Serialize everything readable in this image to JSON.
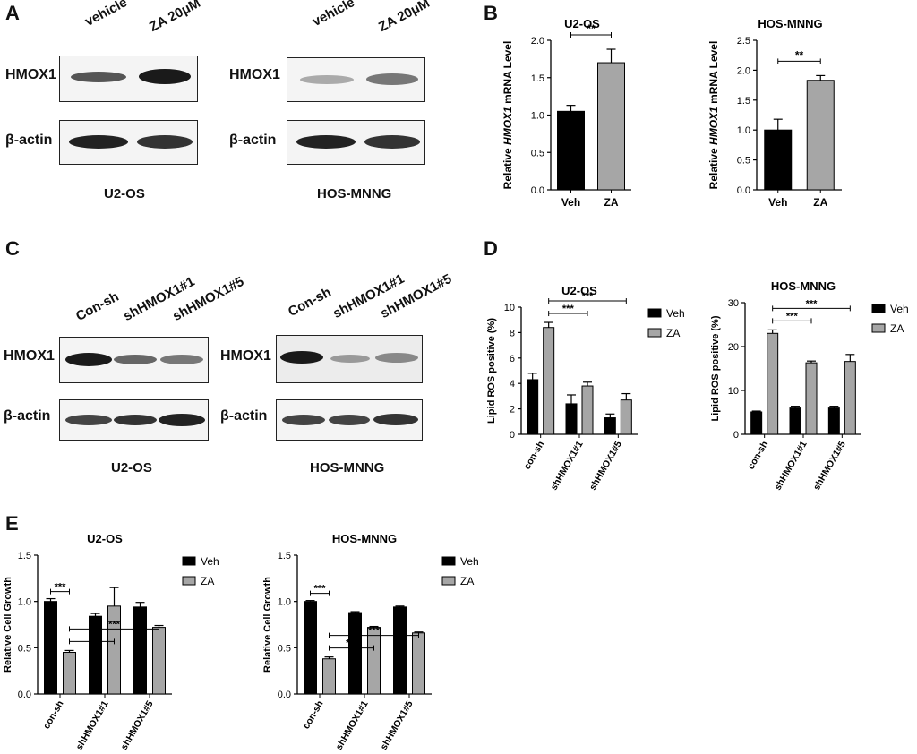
{
  "panels": {
    "A": "A",
    "B": "B",
    "C": "C",
    "D": "D",
    "E": "E"
  },
  "panel_A": {
    "lanes": [
      "vehicle",
      "ZA 20μM"
    ],
    "rows": [
      "HMOX1",
      "β-actin"
    ],
    "cells": [
      "U2-OS",
      "HOS-MNNG"
    ]
  },
  "panel_C": {
    "lanes": [
      "Con-sh",
      "shHMOX1#1",
      "shHMOX1#5"
    ],
    "rows": [
      "HMOX1",
      "β-actin"
    ],
    "cells": [
      "U2-OS",
      "HOS-MNNG"
    ]
  },
  "colors": {
    "veh": "#000000",
    "za": "#a6a6a6"
  },
  "chart_data": [
    {
      "id": "B1",
      "type": "bar",
      "title": "U2-OS",
      "ylabel": "Relative HMOX1 mRNA Level",
      "categories": [
        "Veh",
        "ZA"
      ],
      "values": [
        1.05,
        1.7
      ],
      "errors": [
        0.08,
        0.18
      ],
      "ylim": [
        0,
        2.0
      ],
      "yticks": [
        "0.0",
        "0.5",
        "1.0",
        "1.5",
        "2.0"
      ],
      "annotations": [
        {
          "text": "**",
          "from": "Veh",
          "to": "ZA"
        }
      ]
    },
    {
      "id": "B2",
      "type": "bar",
      "title": "HOS-MNNG",
      "ylabel": "Relative HMOX1 mRNA Level",
      "categories": [
        "Veh",
        "ZA"
      ],
      "values": [
        1.0,
        1.83
      ],
      "errors": [
        0.18,
        0.08
      ],
      "ylim": [
        0,
        2.5
      ],
      "yticks": [
        "0.0",
        "0.5",
        "1.0",
        "1.5",
        "2.0",
        "2.5"
      ],
      "annotations": [
        {
          "text": "**",
          "from": "Veh",
          "to": "ZA"
        }
      ]
    },
    {
      "id": "D1",
      "type": "bar",
      "title": "U2-OS",
      "ylabel": "Lipid ROS positive (%)",
      "categories": [
        "con-sh",
        "shHMOX1#1",
        "shHMOX1#5"
      ],
      "series": [
        {
          "name": "Veh",
          "values": [
            4.3,
            2.4,
            1.3
          ],
          "errors": [
            0.5,
            0.7,
            0.3
          ]
        },
        {
          "name": "ZA",
          "values": [
            8.4,
            3.8,
            2.7
          ],
          "errors": [
            0.4,
            0.3,
            0.5
          ]
        }
      ],
      "ylim": [
        0,
        10
      ],
      "yticks": [
        "0",
        "2",
        "4",
        "6",
        "8",
        "10"
      ],
      "annotations": [
        {
          "text": "***",
          "level": 1
        },
        {
          "text": "***",
          "level": 2
        }
      ]
    },
    {
      "id": "D2",
      "type": "bar",
      "title": "HOS-MNNG",
      "ylabel": "Lipid ROS positive (%)",
      "categories": [
        "con-sh",
        "shHMOX1#1",
        "shHMOX1#5"
      ],
      "series": [
        {
          "name": "Veh",
          "values": [
            5.1,
            6.0,
            6.0
          ],
          "errors": [
            0.2,
            0.4,
            0.4
          ]
        },
        {
          "name": "ZA",
          "values": [
            23.0,
            16.3,
            16.6
          ],
          "errors": [
            0.8,
            0.4,
            1.6
          ]
        }
      ],
      "ylim": [
        0,
        30
      ],
      "yticks": [
        "0",
        "10",
        "20",
        "30"
      ],
      "annotations": [
        {
          "text": "***",
          "level": 1
        },
        {
          "text": "***",
          "level": 2
        }
      ]
    },
    {
      "id": "E1",
      "type": "bar",
      "title": "U2-OS",
      "ylabel": "Relative Cell Growth",
      "categories": [
        "con-sh",
        "shHMOX1#1",
        "shHMOX1#5"
      ],
      "series": [
        {
          "name": "Veh",
          "values": [
            1.0,
            0.84,
            0.94
          ],
          "errors": [
            0.03,
            0.03,
            0.05
          ]
        },
        {
          "name": "ZA",
          "values": [
            0.45,
            0.95,
            0.72
          ],
          "errors": [
            0.02,
            0.2,
            0.02
          ]
        }
      ],
      "ylim": [
        0,
        1.5
      ],
      "yticks": [
        "0.0",
        "0.5",
        "1.0",
        "1.5"
      ],
      "annotations": [
        {
          "text": "***",
          "level": 0
        },
        {
          "text": "*",
          "level": 1
        },
        {
          "text": "***",
          "level": 2
        }
      ]
    },
    {
      "id": "E2",
      "type": "bar",
      "title": "HOS-MNNG",
      "ylabel": "Relative Cell Growth",
      "categories": [
        "con-sh",
        "shHMOX1#1",
        "shHMOX1#5"
      ],
      "series": [
        {
          "name": "Veh",
          "values": [
            1.0,
            0.88,
            0.94
          ],
          "errors": [
            0.01,
            0.01,
            0.01
          ]
        },
        {
          "name": "ZA",
          "values": [
            0.38,
            0.72,
            0.66
          ],
          "errors": [
            0.02,
            0.01,
            0.01
          ]
        }
      ],
      "ylim": [
        0,
        1.5
      ],
      "yticks": [
        "0.0",
        "0.5",
        "1.0",
        "1.5"
      ],
      "annotations": [
        {
          "text": "***",
          "level": 0
        },
        {
          "text": "***",
          "level": 1
        },
        {
          "text": "***",
          "level": 2
        }
      ]
    }
  ]
}
